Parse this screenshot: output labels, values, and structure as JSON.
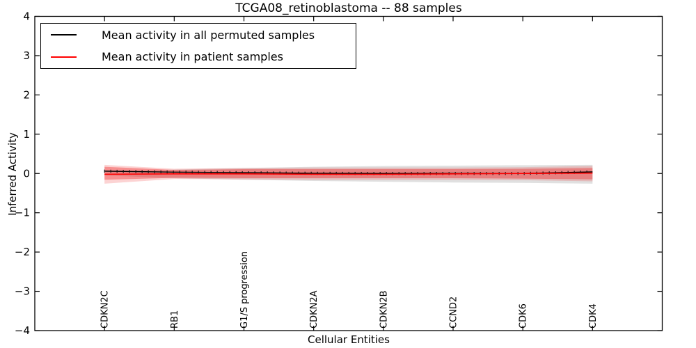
{
  "figure": {
    "title": "TCGA08_retinoblastoma -- 88 samples",
    "xlabel": "Cellular Entities",
    "ylabel": "Inferred Activity"
  },
  "legend": {
    "position": "upper left",
    "entries": [
      {
        "label": "Mean activity in all permuted samples",
        "color": "#000000"
      },
      {
        "label": "Mean activity in patient samples",
        "color": "#ff0000"
      }
    ]
  },
  "chart_data": {
    "type": "line",
    "title": "TCGA08_retinoblastoma -- 88 samples",
    "xlabel": "Cellular Entities",
    "ylabel": "Inferred Activity",
    "ylim": [
      -4,
      4
    ],
    "yticks": [
      4,
      3,
      2,
      1,
      0,
      -1,
      -2,
      -3,
      -4
    ],
    "ytick_labels": [
      "4",
      "3",
      "2",
      "1",
      "0",
      "−1",
      "−2",
      "−3",
      "−4"
    ],
    "categories": [
      "CDKN2C",
      "RB1",
      "G1/S progression",
      "CDKN2A",
      "CDKN2B",
      "CCND2",
      "CDK6",
      "CDK4"
    ],
    "series": [
      {
        "name": "Mean activity in all permuted samples",
        "color": "#000000",
        "marker": "+",
        "values": [
          0.06,
          0.035,
          0.02,
          0.005,
          0.0,
          0.0,
          0.0,
          0.04
        ]
      },
      {
        "name": "Mean activity in patient samples",
        "color": "#ff0000",
        "marker": null,
        "values": [
          -0.02,
          -0.01,
          -0.01,
          -0.02,
          -0.02,
          -0.01,
          0.0,
          0.01
        ]
      }
    ],
    "bands": [
      {
        "name": "permuted-samples-spread",
        "color": "#999999",
        "opacity": 0.3,
        "upper": [
          0.05,
          0.1,
          0.14,
          0.17,
          0.19,
          0.2,
          0.21,
          0.22
        ],
        "lower": [
          -0.05,
          -0.12,
          -0.16,
          -0.19,
          -0.21,
          -0.23,
          -0.24,
          -0.26
        ]
      },
      {
        "name": "patient-samples-outer-spread",
        "color": "#ee2222",
        "opacity": 0.2,
        "upper": [
          0.22,
          0.12,
          0.14,
          0.15,
          0.15,
          0.15,
          0.16,
          0.19
        ],
        "lower": [
          -0.26,
          -0.14,
          -0.15,
          -0.16,
          -0.16,
          -0.16,
          -0.17,
          -0.2
        ]
      },
      {
        "name": "patient-samples-inner-spread",
        "color": "#ee2222",
        "opacity": 0.38,
        "upper": [
          0.17,
          0.09,
          0.11,
          0.11,
          0.11,
          0.11,
          0.12,
          0.14
        ],
        "lower": [
          -0.16,
          -0.11,
          -0.12,
          -0.12,
          -0.12,
          -0.12,
          -0.13,
          -0.15
        ]
      }
    ],
    "legend_position": "upper left",
    "grid": false
  }
}
